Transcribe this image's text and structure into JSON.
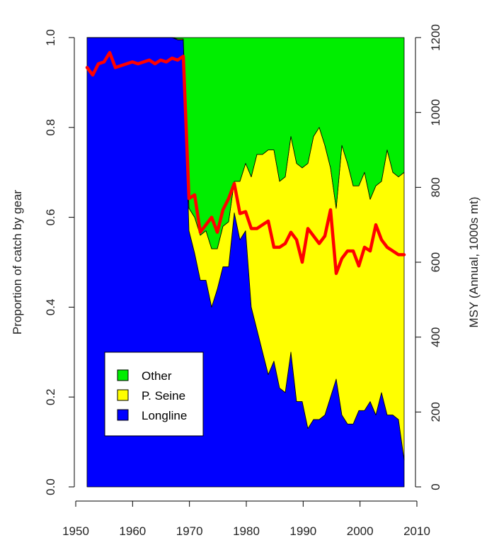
{
  "chart_data": {
    "type": "area",
    "xlabel": "",
    "ylabel_left": "Proportion of catch by gear",
    "ylabel_right": "MSY (Annual, 1000s mt)",
    "xlim": [
      1950,
      2010
    ],
    "ylim_left": [
      0,
      1
    ],
    "ylim_right": [
      0,
      1200
    ],
    "x_ticks": [
      "1950",
      "1960",
      "1970",
      "1980",
      "1990",
      "2000",
      "2010"
    ],
    "y_left_ticks": [
      "0.0",
      "0.2",
      "0.4",
      "0.6",
      "0.8",
      "1.0"
    ],
    "y_right_ticks": [
      "0",
      "200",
      "400",
      "600",
      "800",
      "1000",
      "1200"
    ],
    "grid": false,
    "legend_position": "bottom-left",
    "colors": {
      "Longline": "#0000FF",
      "P. Seine": "#FFFF00",
      "Other": "#00EE00",
      "MSY": "#FF0000"
    },
    "x": [
      1952,
      1953,
      1954,
      1955,
      1956,
      1957,
      1958,
      1959,
      1960,
      1961,
      1962,
      1963,
      1964,
      1965,
      1966,
      1967,
      1968,
      1969,
      1970,
      1971,
      1972,
      1973,
      1974,
      1975,
      1976,
      1977,
      1978,
      1979,
      1980,
      1981,
      1982,
      1983,
      1984,
      1985,
      1986,
      1987,
      1988,
      1989,
      1990,
      1991,
      1992,
      1993,
      1994,
      1995,
      1996,
      1997,
      1998,
      1999,
      2000,
      2001,
      2002,
      2003,
      2004,
      2005,
      2006,
      2007,
      2008
    ],
    "series": [
      {
        "name": "Longline",
        "values": [
          1,
          1,
          1,
          1,
          1,
          1,
          1,
          1,
          1,
          1,
          1,
          1,
          1,
          1,
          1,
          1,
          0.995,
          0.995,
          0.57,
          0.52,
          0.46,
          0.46,
          0.4,
          0.44,
          0.49,
          0.49,
          0.61,
          0.55,
          0.57,
          0.4,
          0.35,
          0.3,
          0.25,
          0.28,
          0.22,
          0.21,
          0.3,
          0.19,
          0.19,
          0.13,
          0.15,
          0.15,
          0.16,
          0.2,
          0.24,
          0.16,
          0.14,
          0.14,
          0.17,
          0.17,
          0.19,
          0.16,
          0.21,
          0.16,
          0.16,
          0.15,
          0.06
        ]
      },
      {
        "name": "P. Seine",
        "values": [
          0,
          0,
          0,
          0,
          0,
          0,
          0,
          0,
          0,
          0,
          0,
          0,
          0,
          0,
          0,
          0,
          0.002,
          0.002,
          0.05,
          0.08,
          0.1,
          0.11,
          0.13,
          0.09,
          0.09,
          0.1,
          0.07,
          0.13,
          0.15,
          0.29,
          0.39,
          0.44,
          0.5,
          0.47,
          0.46,
          0.48,
          0.48,
          0.53,
          0.52,
          0.59,
          0.63,
          0.65,
          0.6,
          0.51,
          0.38,
          0.6,
          0.58,
          0.53,
          0.5,
          0.53,
          0.45,
          0.51,
          0.47,
          0.59,
          0.54,
          0.54,
          0.64
        ]
      },
      {
        "name": "Other",
        "values": [
          0,
          0,
          0,
          0,
          0,
          0,
          0,
          0,
          0,
          0,
          0,
          0,
          0,
          0,
          0,
          0,
          0.003,
          0.003,
          0.38,
          0.4,
          0.44,
          0.43,
          0.47,
          0.47,
          0.42,
          0.41,
          0.32,
          0.32,
          0.28,
          0.31,
          0.26,
          0.26,
          0.25,
          0.25,
          0.32,
          0.31,
          0.22,
          0.28,
          0.29,
          0.28,
          0.22,
          0.2,
          0.24,
          0.29,
          0.38,
          0.24,
          0.28,
          0.33,
          0.33,
          0.3,
          0.36,
          0.33,
          0.32,
          0.25,
          0.3,
          0.31,
          0.3
        ]
      },
      {
        "name": "MSY",
        "axis": "right",
        "values": [
          1120,
          1100,
          1130,
          1135,
          1160,
          1120,
          1125,
          1130,
          1135,
          1130,
          1135,
          1140,
          1130,
          1140,
          1135,
          1145,
          1140,
          1150,
          770,
          780,
          680,
          700,
          720,
          680,
          740,
          770,
          810,
          730,
          735,
          690,
          690,
          700,
          710,
          640,
          640,
          650,
          680,
          660,
          600,
          690,
          670,
          650,
          670,
          740,
          570,
          610,
          630,
          630,
          590,
          640,
          630,
          700,
          660,
          640,
          630,
          620,
          620
        ]
      }
    ]
  }
}
